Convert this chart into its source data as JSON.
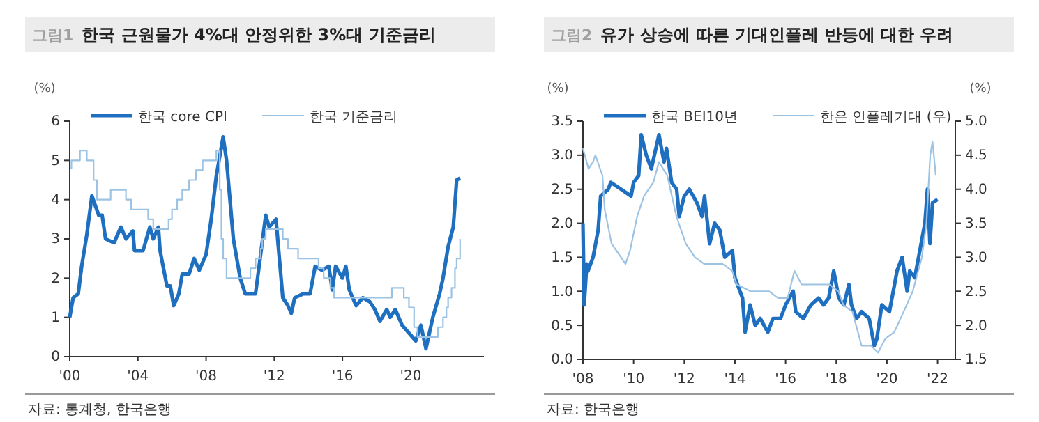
{
  "chart_data": [
    {
      "type": "line",
      "subtitle": "그림1",
      "title": "한국 근원물가 4%대 안정위한 3%대 기준금리",
      "ylabel": "(%)",
      "legend": "top",
      "annotations": [
        "자료: 통계청, 한국은행"
      ],
      "xlim": [
        2000,
        2024.3
      ],
      "xticks": [
        {
          "value": 2000,
          "label": "'00"
        },
        {
          "value": 2004,
          "label": "'04"
        },
        {
          "value": 2008,
          "label": "'08"
        },
        {
          "value": 2012,
          "label": "'12"
        },
        {
          "value": 2016,
          "label": "'16"
        },
        {
          "value": 2020,
          "label": "'20"
        }
      ],
      "ylim": [
        0,
        6
      ],
      "yticks": [
        0,
        1,
        2,
        3,
        4,
        5,
        6
      ],
      "series": [
        {
          "name": "한국 core CPI",
          "color": "#1f6fc0",
          "x": [
            2000.0,
            2000.2,
            2000.5,
            2000.7,
            2001.0,
            2001.3,
            2001.7,
            2001.9,
            2002.1,
            2002.6,
            2003.0,
            2003.3,
            2003.7,
            2003.8,
            2004.3,
            2004.7,
            2004.9,
            2005.2,
            2005.3,
            2005.7,
            2005.9,
            2006.1,
            2006.4,
            2006.6,
            2007.0,
            2007.3,
            2007.6,
            2008.0,
            2008.3,
            2008.6,
            2009.0,
            2009.2,
            2009.6,
            2010.0,
            2010.3,
            2010.7,
            2010.9,
            2011.2,
            2011.5,
            2011.7,
            2012.1,
            2012.3,
            2012.5,
            2012.8,
            2013.0,
            2013.2,
            2013.7,
            2014.1,
            2014.4,
            2014.8,
            2015.2,
            2015.4,
            2015.6,
            2016.0,
            2016.2,
            2016.4,
            2016.8,
            2017.2,
            2017.6,
            2017.9,
            2018.2,
            2018.6,
            2018.8,
            2019.1,
            2019.5,
            2019.9,
            2020.3,
            2020.6,
            2020.9,
            2021.3,
            2021.7,
            2021.9,
            2022.2,
            2022.5,
            2022.7,
            2022.9
          ],
          "values": [
            1.0,
            1.5,
            1.6,
            2.3,
            3.1,
            4.1,
            3.6,
            3.6,
            3.0,
            2.9,
            3.3,
            3.0,
            3.2,
            2.7,
            2.7,
            3.3,
            3.0,
            3.3,
            2.7,
            1.8,
            1.8,
            1.3,
            1.6,
            2.1,
            2.1,
            2.5,
            2.2,
            2.6,
            3.5,
            4.6,
            5.6,
            5.0,
            3.0,
            2.0,
            1.6,
            1.6,
            1.6,
            2.6,
            3.6,
            3.3,
            3.5,
            2.5,
            1.5,
            1.3,
            1.1,
            1.5,
            1.6,
            1.6,
            2.3,
            2.2,
            2.3,
            1.7,
            2.3,
            2.0,
            2.3,
            1.7,
            1.3,
            1.5,
            1.4,
            1.2,
            0.9,
            1.2,
            1.0,
            1.2,
            0.8,
            0.6,
            0.4,
            0.8,
            0.2,
            1.0,
            1.6,
            2.0,
            2.8,
            3.3,
            4.5,
            4.55
          ]
        },
        {
          "name": "한국 기준금리",
          "type": "step",
          "color": "#9cc3e4",
          "x": [
            2000.0,
            2000.1,
            2000.6,
            2001.0,
            2001.4,
            2001.6,
            2001.9,
            2002.4,
            2003.3,
            2003.6,
            2003.8,
            2004.6,
            2004.9,
            2005.0,
            2005.8,
            2006.0,
            2006.3,
            2006.6,
            2007.0,
            2007.4,
            2007.8,
            2008.6,
            2008.8,
            2008.9,
            2009.0,
            2009.2,
            2010.6,
            2010.9,
            2011.2,
            2011.3,
            2011.5,
            2012.5,
            2012.8,
            2013.4,
            2014.6,
            2014.9,
            2015.3,
            2015.5,
            2017.9,
            2018.9,
            2019.6,
            2019.9,
            2020.2,
            2020.4,
            2021.6,
            2021.9,
            2022.1,
            2022.2,
            2022.4,
            2022.6,
            2022.7,
            2022.9
          ],
          "values": [
            4.8,
            5.0,
            5.25,
            5.0,
            4.5,
            4.0,
            4.0,
            4.25,
            4.0,
            3.75,
            3.75,
            3.5,
            3.25,
            3.25,
            3.5,
            3.75,
            4.0,
            4.25,
            4.5,
            4.75,
            5.0,
            5.25,
            4.25,
            3.0,
            2.5,
            2.0,
            2.25,
            2.5,
            2.75,
            3.0,
            3.25,
            3.0,
            2.75,
            2.5,
            2.25,
            2.0,
            1.75,
            1.5,
            1.5,
            1.75,
            1.5,
            1.25,
            0.75,
            0.5,
            0.75,
            1.0,
            1.25,
            1.5,
            1.75,
            2.25,
            2.5,
            3.0
          ]
        }
      ]
    },
    {
      "type": "line",
      "subtitle": "그림2",
      "title": "유가 상승에 따른 기대인플레 반등에 대한 우려",
      "ylabel": "(%)",
      "y2label": "(%)",
      "legend": "top",
      "annotations": [
        "자료: 한국은행"
      ],
      "xlim": [
        2008,
        2022.7
      ],
      "xticks": [
        {
          "value": 2008,
          "label": "'08"
        },
        {
          "value": 2010,
          "label": "'10"
        },
        {
          "value": 2012,
          "label": "'12"
        },
        {
          "value": 2014,
          "label": "'14"
        },
        {
          "value": 2016,
          "label": "'16"
        },
        {
          "value": 2018,
          "label": "'18"
        },
        {
          "value": 2020,
          "label": "'20"
        },
        {
          "value": 2022,
          "label": "'22"
        }
      ],
      "ylim": [
        0,
        3.5
      ],
      "yticks": [
        {
          "value": 0,
          "label": "0.0"
        },
        0.5,
        {
          "value": 1,
          "label": "1.0"
        },
        1.5,
        {
          "value": 2,
          "label": "2.0"
        },
        2.5,
        {
          "value": 3,
          "label": "3.0"
        },
        3.5
      ],
      "y2lim": [
        1.5,
        5.0
      ],
      "y2ticks": [
        1.5,
        {
          "value": 2,
          "label": "2.0"
        },
        2.5,
        {
          "value": 3,
          "label": "3.0"
        },
        3.5,
        {
          "value": 4,
          "label": "4.0"
        },
        4.5,
        {
          "value": 5,
          "label": "5.0"
        }
      ],
      "series": [
        {
          "name": "한국 BEI10년",
          "color": "#1f6fc0",
          "x": [
            2008.0,
            2008.05,
            2008.15,
            2008.2,
            2008.4,
            2008.6,
            2008.7,
            2009.0,
            2009.1,
            2009.5,
            2009.9,
            2010.0,
            2010.2,
            2010.3,
            2010.5,
            2010.7,
            2011.0,
            2011.2,
            2011.3,
            2011.5,
            2011.7,
            2011.8,
            2012.0,
            2012.2,
            2012.5,
            2012.7,
            2012.8,
            2013.0,
            2013.2,
            2013.4,
            2013.6,
            2013.9,
            2014.0,
            2014.3,
            2014.4,
            2014.6,
            2014.8,
            2015.0,
            2015.3,
            2015.5,
            2015.8,
            2016.0,
            2016.3,
            2016.4,
            2016.7,
            2017.0,
            2017.3,
            2017.5,
            2017.7,
            2017.9,
            2018.1,
            2018.3,
            2018.5,
            2018.6,
            2018.8,
            2019.0,
            2019.3,
            2019.5,
            2019.6,
            2019.8,
            2020.1,
            2020.4,
            2020.6,
            2020.8,
            2020.9,
            2021.1,
            2021.3,
            2021.5,
            2021.6,
            2021.7,
            2021.8,
            2022.0
          ],
          "values": [
            2.0,
            0.8,
            1.4,
            1.3,
            1.5,
            1.9,
            2.4,
            2.5,
            2.6,
            2.5,
            2.4,
            2.6,
            2.7,
            3.3,
            3.0,
            2.8,
            3.3,
            2.9,
            3.1,
            2.6,
            2.5,
            2.1,
            2.4,
            2.5,
            2.3,
            2.1,
            2.4,
            1.7,
            2.0,
            1.9,
            1.5,
            1.6,
            1.2,
            0.9,
            0.4,
            0.8,
            0.5,
            0.6,
            0.4,
            0.6,
            0.6,
            0.8,
            1.0,
            0.7,
            0.6,
            0.8,
            0.9,
            0.8,
            0.9,
            1.3,
            0.9,
            0.8,
            1.1,
            0.8,
            0.6,
            0.7,
            0.6,
            0.2,
            0.3,
            0.8,
            0.7,
            1.3,
            1.5,
            1.0,
            1.3,
            1.2,
            1.6,
            2.0,
            2.5,
            1.7,
            2.3,
            2.35
          ]
        },
        {
          "name": "한은 인플레기대 (우)",
          "axis": "y2",
          "color": "#9cc3e4",
          "x": [
            2008.0,
            2008.22,
            2008.4,
            2008.49,
            2008.77,
            2008.86,
            2009.13,
            2009.5,
            2009.68,
            2009.86,
            2010.14,
            2010.41,
            2010.78,
            2011.0,
            2011.33,
            2011.69,
            2012.06,
            2012.42,
            2012.79,
            2013.52,
            2013.89,
            2014.07,
            2014.62,
            2015.35,
            2015.71,
            2016.08,
            2016.35,
            2016.63,
            2017.18,
            2017.73,
            2018.09,
            2018.28,
            2018.64,
            2019.0,
            2019.37,
            2019.65,
            2019.93,
            2020.29,
            2020.66,
            2021.02,
            2021.38,
            2021.56,
            2021.71,
            2021.8,
            2021.93
          ],
          "values": [
            4.6,
            4.3,
            4.4,
            4.5,
            4.2,
            3.7,
            3.2,
            3.0,
            2.9,
            3.1,
            3.6,
            3.9,
            4.1,
            4.4,
            4.2,
            3.6,
            3.2,
            3.0,
            2.9,
            2.9,
            2.8,
            2.6,
            2.5,
            2.5,
            2.4,
            2.4,
            2.8,
            2.6,
            2.6,
            2.6,
            2.5,
            2.3,
            2.2,
            1.7,
            1.7,
            1.6,
            1.8,
            1.9,
            2.2,
            2.5,
            3.0,
            3.5,
            4.5,
            4.7,
            4.2
          ]
        }
      ]
    }
  ]
}
